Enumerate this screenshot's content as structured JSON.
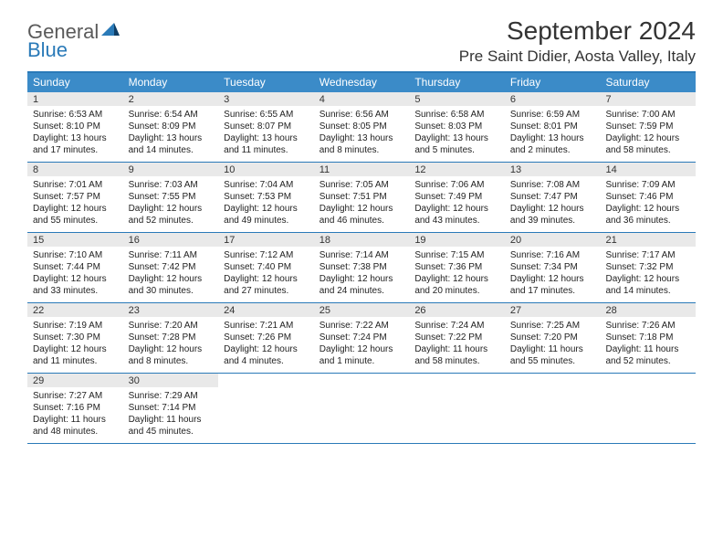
{
  "logo": {
    "line1": "General",
    "line2": "Blue",
    "tri_color1": "#2a7ab8",
    "tri_color2": "#0f3e66"
  },
  "title": "September 2024",
  "location": "Pre Saint Didier, Aosta Valley, Italy",
  "colors": {
    "header_bg": "#3b8bc8",
    "border": "#2a7ab8",
    "daynum_bg": "#e9e9e9"
  },
  "day_names": [
    "Sunday",
    "Monday",
    "Tuesday",
    "Wednesday",
    "Thursday",
    "Friday",
    "Saturday"
  ],
  "weeks": [
    [
      {
        "n": "1",
        "sunrise": "6:53 AM",
        "sunset": "8:10 PM",
        "day_h": "13",
        "day_m": "17"
      },
      {
        "n": "2",
        "sunrise": "6:54 AM",
        "sunset": "8:09 PM",
        "day_h": "13",
        "day_m": "14"
      },
      {
        "n": "3",
        "sunrise": "6:55 AM",
        "sunset": "8:07 PM",
        "day_h": "13",
        "day_m": "11"
      },
      {
        "n": "4",
        "sunrise": "6:56 AM",
        "sunset": "8:05 PM",
        "day_h": "13",
        "day_m": "8"
      },
      {
        "n": "5",
        "sunrise": "6:58 AM",
        "sunset": "8:03 PM",
        "day_h": "13",
        "day_m": "5"
      },
      {
        "n": "6",
        "sunrise": "6:59 AM",
        "sunset": "8:01 PM",
        "day_h": "13",
        "day_m": "2"
      },
      {
        "n": "7",
        "sunrise": "7:00 AM",
        "sunset": "7:59 PM",
        "day_h": "12",
        "day_m": "58"
      }
    ],
    [
      {
        "n": "8",
        "sunrise": "7:01 AM",
        "sunset": "7:57 PM",
        "day_h": "12",
        "day_m": "55"
      },
      {
        "n": "9",
        "sunrise": "7:03 AM",
        "sunset": "7:55 PM",
        "day_h": "12",
        "day_m": "52"
      },
      {
        "n": "10",
        "sunrise": "7:04 AM",
        "sunset": "7:53 PM",
        "day_h": "12",
        "day_m": "49"
      },
      {
        "n": "11",
        "sunrise": "7:05 AM",
        "sunset": "7:51 PM",
        "day_h": "12",
        "day_m": "46"
      },
      {
        "n": "12",
        "sunrise": "7:06 AM",
        "sunset": "7:49 PM",
        "day_h": "12",
        "day_m": "43"
      },
      {
        "n": "13",
        "sunrise": "7:08 AM",
        "sunset": "7:47 PM",
        "day_h": "12",
        "day_m": "39"
      },
      {
        "n": "14",
        "sunrise": "7:09 AM",
        "sunset": "7:46 PM",
        "day_h": "12",
        "day_m": "36"
      }
    ],
    [
      {
        "n": "15",
        "sunrise": "7:10 AM",
        "sunset": "7:44 PM",
        "day_h": "12",
        "day_m": "33"
      },
      {
        "n": "16",
        "sunrise": "7:11 AM",
        "sunset": "7:42 PM",
        "day_h": "12",
        "day_m": "30"
      },
      {
        "n": "17",
        "sunrise": "7:12 AM",
        "sunset": "7:40 PM",
        "day_h": "12",
        "day_m": "27"
      },
      {
        "n": "18",
        "sunrise": "7:14 AM",
        "sunset": "7:38 PM",
        "day_h": "12",
        "day_m": "24"
      },
      {
        "n": "19",
        "sunrise": "7:15 AM",
        "sunset": "7:36 PM",
        "day_h": "12",
        "day_m": "20"
      },
      {
        "n": "20",
        "sunrise": "7:16 AM",
        "sunset": "7:34 PM",
        "day_h": "12",
        "day_m": "17"
      },
      {
        "n": "21",
        "sunrise": "7:17 AM",
        "sunset": "7:32 PM",
        "day_h": "12",
        "day_m": "14"
      }
    ],
    [
      {
        "n": "22",
        "sunrise": "7:19 AM",
        "sunset": "7:30 PM",
        "day_h": "12",
        "day_m": "11"
      },
      {
        "n": "23",
        "sunrise": "7:20 AM",
        "sunset": "7:28 PM",
        "day_h": "12",
        "day_m": "8"
      },
      {
        "n": "24",
        "sunrise": "7:21 AM",
        "sunset": "7:26 PM",
        "day_h": "12",
        "day_m": "4"
      },
      {
        "n": "25",
        "sunrise": "7:22 AM",
        "sunset": "7:24 PM",
        "day_h": "12",
        "day_m": "1"
      },
      {
        "n": "26",
        "sunrise": "7:24 AM",
        "sunset": "7:22 PM",
        "day_h": "11",
        "day_m": "58"
      },
      {
        "n": "27",
        "sunrise": "7:25 AM",
        "sunset": "7:20 PM",
        "day_h": "11",
        "day_m": "55"
      },
      {
        "n": "28",
        "sunrise": "7:26 AM",
        "sunset": "7:18 PM",
        "day_h": "11",
        "day_m": "52"
      }
    ],
    [
      {
        "n": "29",
        "sunrise": "7:27 AM",
        "sunset": "7:16 PM",
        "day_h": "11",
        "day_m": "48"
      },
      {
        "n": "30",
        "sunrise": "7:29 AM",
        "sunset": "7:14 PM",
        "day_h": "11",
        "day_m": "45"
      },
      null,
      null,
      null,
      null,
      null
    ]
  ],
  "labels": {
    "sunrise": "Sunrise:",
    "sunset": "Sunset:",
    "daylight_prefix": "Daylight:",
    "hours_word": "hours",
    "and_word": "and",
    "minutes_word": "minutes.",
    "minute_singular": "minute."
  }
}
